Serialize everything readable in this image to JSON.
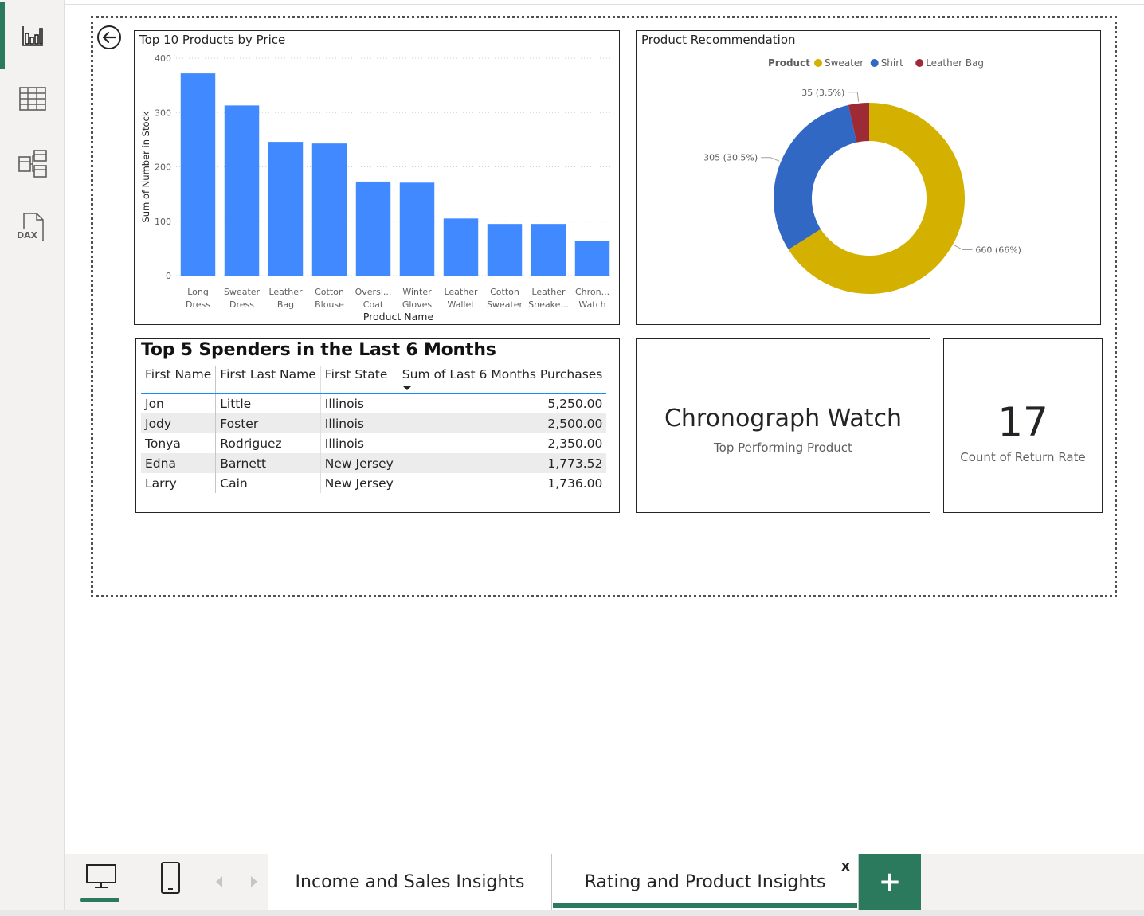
{
  "rail": {
    "items": [
      {
        "name": "report-view",
        "icon": "bar-chart-icon",
        "active": true
      },
      {
        "name": "data-view",
        "icon": "table-grid-icon"
      },
      {
        "name": "model-view",
        "icon": "model-diagram-icon"
      },
      {
        "name": "dax-query-view",
        "icon": "dax-file-icon",
        "label": "DAX"
      }
    ]
  },
  "bar_chart": {
    "title": "Top 10 Products by Price"
  },
  "donut_chart": {
    "title": "Product Recommendation"
  },
  "chart_data": [
    {
      "type": "bar",
      "title": "Top 10 Products by Price",
      "xlabel": "Product Name",
      "ylabel": "Sum of Number in Stock",
      "ylim": [
        0,
        400
      ],
      "yticks": [
        0,
        100,
        200,
        300,
        400
      ],
      "categories": [
        [
          "Long",
          "Dress"
        ],
        [
          "Sweater",
          "Dress"
        ],
        [
          "Leather",
          "Bag"
        ],
        [
          "Cotton",
          "Blouse"
        ],
        [
          "Oversi...",
          "Coat"
        ],
        [
          "Winter",
          "Gloves"
        ],
        [
          "Leather",
          "Wallet"
        ],
        [
          "Cotton",
          "Sweater"
        ],
        [
          "Leather",
          "Sneake..."
        ],
        [
          "Chron...",
          "Watch"
        ]
      ],
      "values": [
        372,
        313,
        246,
        243,
        173,
        171,
        105,
        95,
        95,
        64
      ],
      "color": "#4189ff",
      "grid": true
    },
    {
      "type": "pie",
      "subtype": "donut",
      "title": "Product Recommendation",
      "legend_title": "Product",
      "legend_position": "top",
      "slices": [
        {
          "label": "Sweater",
          "value": 660,
          "display": "660 (66%)",
          "color": "#d4b100"
        },
        {
          "label": "Shirt",
          "value": 305,
          "display": "305 (30.5%)",
          "color": "#3168c4"
        },
        {
          "label": "Leather Bag",
          "value": 35,
          "display": "35 (3.5%)",
          "color": "#9e2a35"
        }
      ]
    }
  ],
  "spenders_table": {
    "title": "Top 5 Spenders in the Last 6 Months",
    "columns": [
      "First Name",
      "First Last Name",
      "First State",
      "Sum of Last 6 Months Purchases"
    ],
    "rows": [
      [
        "Jon",
        "Little",
        "Illinois",
        "5,250.00"
      ],
      [
        "Jody",
        "Foster",
        "Illinois",
        "2,500.00"
      ],
      [
        "Tonya",
        "Rodriguez",
        "Illinois",
        "2,350.00"
      ],
      [
        "Edna",
        "Barnett",
        "New Jersey",
        "1,773.52"
      ],
      [
        "Larry",
        "Cain",
        "New Jersey",
        "1,736.00"
      ]
    ]
  },
  "card_product": {
    "value": "Chronograph Watch",
    "label": "Top Performing Product"
  },
  "card_return": {
    "value": "17",
    "label": "Count of Return Rate"
  },
  "bottom": {
    "tabs": [
      {
        "label": "Income and Sales Insights",
        "active": false
      },
      {
        "label": "Rating and Product Insights",
        "active": true
      }
    ],
    "close_label": "x",
    "add_label": "+"
  },
  "colors": {
    "accent": "#2b7a5e",
    "bar": "#4189ff"
  }
}
